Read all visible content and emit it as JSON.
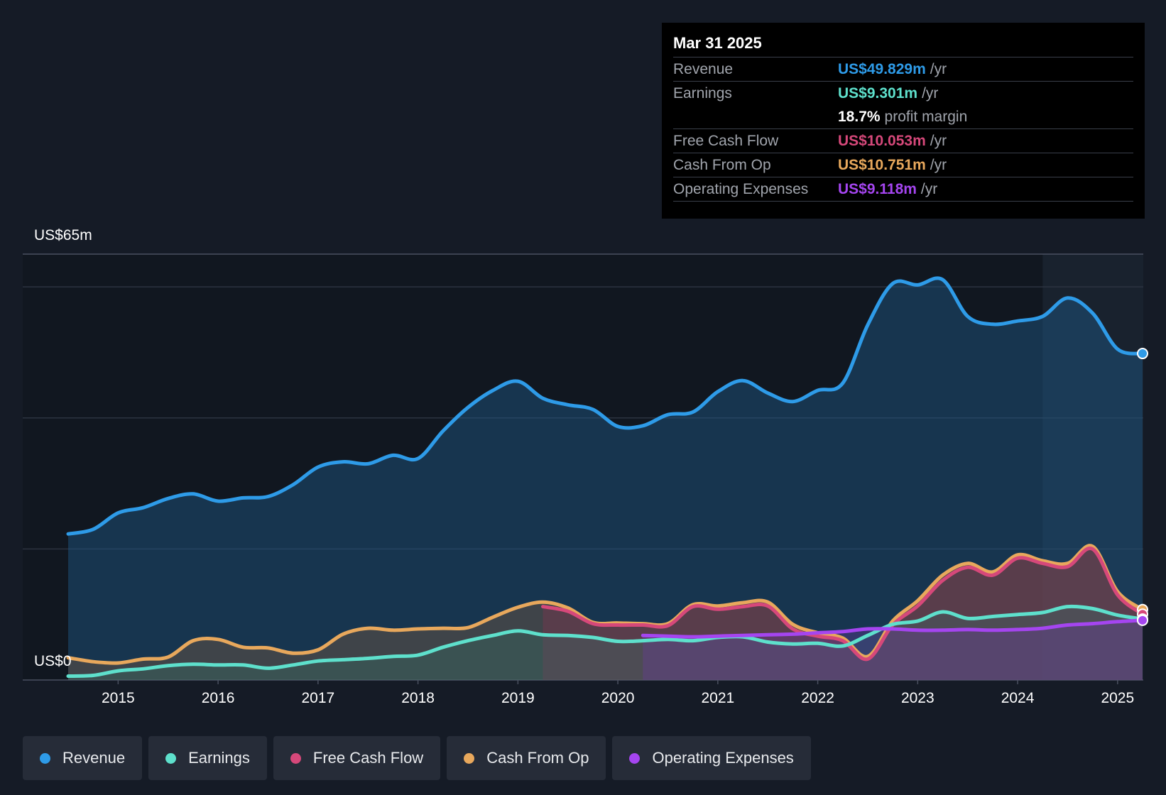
{
  "chart_data": {
    "type": "area",
    "title": "",
    "y_axis": {
      "top_label": "US$65m",
      "bottom_label": "US$0",
      "ylim": [
        0,
        65
      ]
    },
    "x_ticks": [
      "2015",
      "2016",
      "2017",
      "2018",
      "2019",
      "2020",
      "2021",
      "2022",
      "2023",
      "2024",
      "2025"
    ],
    "x_range": [
      2014.5,
      2025.25
    ],
    "forecast_shade_start": 2024.25,
    "series": [
      {
        "name": "Revenue",
        "color": "#2e9be8",
        "points": [
          [
            2014.5,
            22.3
          ],
          [
            2014.75,
            23.0
          ],
          [
            2015.0,
            25.5
          ],
          [
            2015.25,
            26.3
          ],
          [
            2015.5,
            27.7
          ],
          [
            2015.75,
            28.4
          ],
          [
            2016.0,
            27.3
          ],
          [
            2016.25,
            27.8
          ],
          [
            2016.5,
            28.0
          ],
          [
            2016.75,
            29.8
          ],
          [
            2017.0,
            32.5
          ],
          [
            2017.25,
            33.3
          ],
          [
            2017.5,
            33.0
          ],
          [
            2017.75,
            34.3
          ],
          [
            2018.0,
            33.8
          ],
          [
            2018.25,
            38.0
          ],
          [
            2018.5,
            41.6
          ],
          [
            2018.75,
            44.2
          ],
          [
            2019.0,
            45.6
          ],
          [
            2019.25,
            43.0
          ],
          [
            2019.5,
            42.0
          ],
          [
            2019.75,
            41.3
          ],
          [
            2020.0,
            38.7
          ],
          [
            2020.25,
            38.8
          ],
          [
            2020.5,
            40.5
          ],
          [
            2020.75,
            40.9
          ],
          [
            2021.0,
            44.0
          ],
          [
            2021.25,
            45.7
          ],
          [
            2021.5,
            43.8
          ],
          [
            2021.75,
            42.5
          ],
          [
            2022.0,
            44.2
          ],
          [
            2022.25,
            45.3
          ],
          [
            2022.5,
            54.2
          ],
          [
            2022.75,
            60.5
          ],
          [
            2023.0,
            60.3
          ],
          [
            2023.25,
            61.1
          ],
          [
            2023.5,
            55.5
          ],
          [
            2023.75,
            54.3
          ],
          [
            2024.0,
            54.8
          ],
          [
            2024.25,
            55.5
          ],
          [
            2024.5,
            58.3
          ],
          [
            2024.75,
            56.0
          ],
          [
            2025.0,
            50.5
          ],
          [
            2025.25,
            49.829
          ]
        ]
      },
      {
        "name": "Earnings",
        "color": "#5ee0cc",
        "points": [
          [
            2014.5,
            0.6
          ],
          [
            2014.75,
            0.7
          ],
          [
            2015.0,
            1.4
          ],
          [
            2015.25,
            1.7
          ],
          [
            2015.5,
            2.2
          ],
          [
            2015.75,
            2.4
          ],
          [
            2016.0,
            2.3
          ],
          [
            2016.25,
            2.3
          ],
          [
            2016.5,
            1.8
          ],
          [
            2016.75,
            2.3
          ],
          [
            2017.0,
            2.9
          ],
          [
            2017.25,
            3.1
          ],
          [
            2017.5,
            3.3
          ],
          [
            2017.75,
            3.6
          ],
          [
            2018.0,
            3.8
          ],
          [
            2018.25,
            5.0
          ],
          [
            2018.5,
            6.0
          ],
          [
            2018.75,
            6.8
          ],
          [
            2019.0,
            7.5
          ],
          [
            2019.25,
            6.9
          ],
          [
            2019.5,
            6.8
          ],
          [
            2019.75,
            6.5
          ],
          [
            2020.0,
            5.9
          ],
          [
            2020.25,
            6.0
          ],
          [
            2020.5,
            6.2
          ],
          [
            2020.75,
            6.0
          ],
          [
            2021.0,
            6.5
          ],
          [
            2021.25,
            6.6
          ],
          [
            2021.5,
            5.8
          ],
          [
            2021.75,
            5.5
          ],
          [
            2022.0,
            5.6
          ],
          [
            2022.25,
            5.2
          ],
          [
            2022.5,
            6.8
          ],
          [
            2022.75,
            8.5
          ],
          [
            2023.0,
            9.0
          ],
          [
            2023.25,
            10.4
          ],
          [
            2023.5,
            9.4
          ],
          [
            2023.75,
            9.7
          ],
          [
            2024.0,
            10.0
          ],
          [
            2024.25,
            10.3
          ],
          [
            2024.5,
            11.2
          ],
          [
            2024.75,
            10.9
          ],
          [
            2025.0,
            9.9
          ],
          [
            2025.25,
            9.301
          ]
        ]
      },
      {
        "name": "Free Cash Flow",
        "color": "#d6487a",
        "points": [
          [
            2019.25,
            11.2
          ],
          [
            2019.5,
            10.5
          ],
          [
            2019.75,
            8.6
          ],
          [
            2020.0,
            8.4
          ],
          [
            2020.25,
            8.4
          ],
          [
            2020.5,
            8.3
          ],
          [
            2020.75,
            11.2
          ],
          [
            2021.0,
            10.8
          ],
          [
            2021.25,
            11.2
          ],
          [
            2021.5,
            11.3
          ],
          [
            2021.75,
            7.8
          ],
          [
            2022.0,
            6.7
          ],
          [
            2022.25,
            6.0
          ],
          [
            2022.5,
            3.2
          ],
          [
            2022.75,
            8.4
          ],
          [
            2023.0,
            11.3
          ],
          [
            2023.25,
            15.2
          ],
          [
            2023.5,
            17.2
          ],
          [
            2023.75,
            16.0
          ],
          [
            2024.0,
            18.6
          ],
          [
            2024.25,
            17.8
          ],
          [
            2024.5,
            17.3
          ],
          [
            2024.75,
            20.0
          ],
          [
            2025.0,
            13.0
          ],
          [
            2025.25,
            10.053
          ]
        ]
      },
      {
        "name": "Cash From Op",
        "color": "#e8a85c",
        "points": [
          [
            2014.5,
            3.4
          ],
          [
            2014.75,
            2.8
          ],
          [
            2015.0,
            2.6
          ],
          [
            2015.25,
            3.2
          ],
          [
            2015.5,
            3.5
          ],
          [
            2015.75,
            6.0
          ],
          [
            2016.0,
            6.2
          ],
          [
            2016.25,
            5.0
          ],
          [
            2016.5,
            4.9
          ],
          [
            2016.75,
            4.1
          ],
          [
            2017.0,
            4.6
          ],
          [
            2017.25,
            7.0
          ],
          [
            2017.5,
            7.9
          ],
          [
            2017.75,
            7.6
          ],
          [
            2018.0,
            7.8
          ],
          [
            2018.25,
            7.9
          ],
          [
            2018.5,
            8.0
          ],
          [
            2018.75,
            9.6
          ],
          [
            2019.0,
            11.1
          ],
          [
            2019.25,
            11.9
          ],
          [
            2019.5,
            11.0
          ],
          [
            2019.75,
            8.8
          ],
          [
            2020.0,
            8.7
          ],
          [
            2020.25,
            8.6
          ],
          [
            2020.5,
            8.6
          ],
          [
            2020.75,
            11.5
          ],
          [
            2021.0,
            11.3
          ],
          [
            2021.25,
            11.8
          ],
          [
            2021.5,
            11.9
          ],
          [
            2021.75,
            8.5
          ],
          [
            2022.0,
            7.2
          ],
          [
            2022.25,
            6.4
          ],
          [
            2022.5,
            3.6
          ],
          [
            2022.75,
            9.0
          ],
          [
            2023.0,
            12.1
          ],
          [
            2023.25,
            16.0
          ],
          [
            2023.5,
            17.8
          ],
          [
            2023.75,
            16.5
          ],
          [
            2024.0,
            19.1
          ],
          [
            2024.25,
            18.2
          ],
          [
            2024.5,
            17.8
          ],
          [
            2024.75,
            20.4
          ],
          [
            2025.0,
            13.5
          ],
          [
            2025.25,
            10.751
          ]
        ]
      },
      {
        "name": "Operating Expenses",
        "color": "#a545f0",
        "points": [
          [
            2020.25,
            6.8
          ],
          [
            2020.5,
            6.7
          ],
          [
            2020.75,
            6.6
          ],
          [
            2021.0,
            6.7
          ],
          [
            2021.25,
            6.8
          ],
          [
            2021.5,
            6.9
          ],
          [
            2021.75,
            7.0
          ],
          [
            2022.0,
            7.2
          ],
          [
            2022.25,
            7.4
          ],
          [
            2022.5,
            7.8
          ],
          [
            2022.75,
            7.8
          ],
          [
            2023.0,
            7.6
          ],
          [
            2023.25,
            7.6
          ],
          [
            2023.5,
            7.7
          ],
          [
            2023.75,
            7.6
          ],
          [
            2024.0,
            7.7
          ],
          [
            2024.25,
            7.9
          ],
          [
            2024.5,
            8.4
          ],
          [
            2024.75,
            8.6
          ],
          [
            2025.0,
            8.9
          ],
          [
            2025.25,
            9.118
          ]
        ]
      }
    ]
  },
  "tooltip": {
    "date": "Mar 31 2025",
    "rows": [
      {
        "label": "Revenue",
        "value": "US$49.829m",
        "unit": "/yr",
        "color": "#2e9be8"
      },
      {
        "label": "Earnings",
        "value": "US$9.301m",
        "unit": "/yr",
        "color": "#5ee0cc"
      },
      {
        "label": "",
        "value": "18.7%",
        "unit": "profit margin",
        "color": "#ffffff"
      },
      {
        "label": "Free Cash Flow",
        "value": "US$10.053m",
        "unit": "/yr",
        "color": "#d6487a"
      },
      {
        "label": "Cash From Op",
        "value": "US$10.751m",
        "unit": "/yr",
        "color": "#e8a85c"
      },
      {
        "label": "Operating Expenses",
        "value": "US$9.118m",
        "unit": "/yr",
        "color": "#a545f0"
      }
    ]
  },
  "legend": [
    {
      "label": "Revenue",
      "color": "#2e9be8"
    },
    {
      "label": "Earnings",
      "color": "#5ee0cc"
    },
    {
      "label": "Free Cash Flow",
      "color": "#d6487a"
    },
    {
      "label": "Cash From Op",
      "color": "#e8a85c"
    },
    {
      "label": "Operating Expenses",
      "color": "#a545f0"
    }
  ]
}
